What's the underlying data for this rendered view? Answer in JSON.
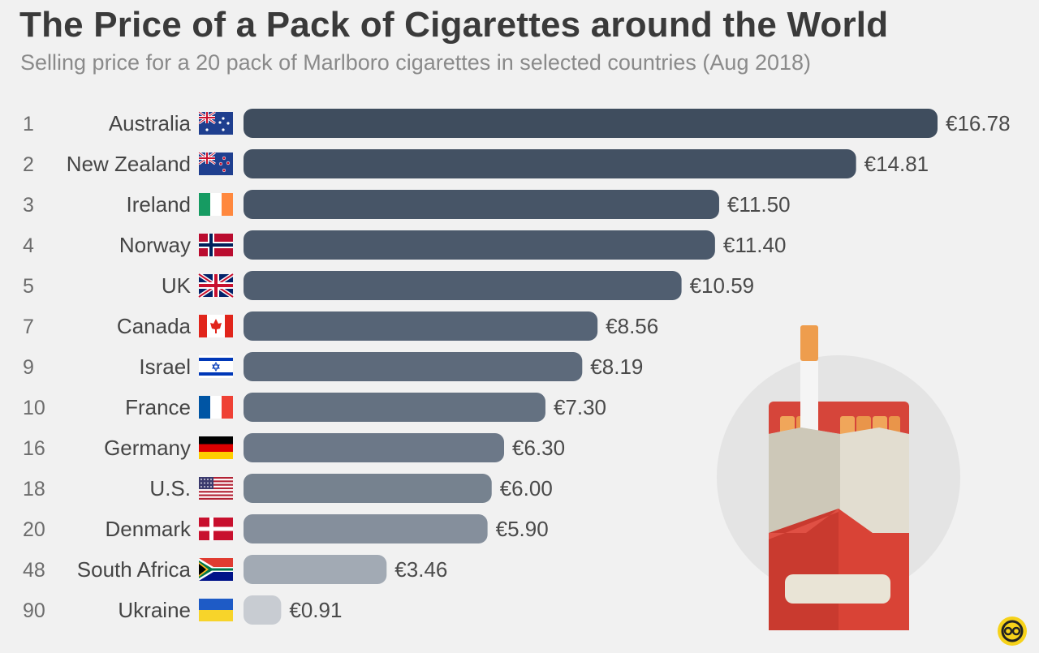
{
  "header": {
    "title": "The Price of a Pack of Cigarettes around the World",
    "subtitle": "Selling price for a 20 pack of Marlboro cigarettes in selected countries (Aug 2018)"
  },
  "chart_data": {
    "type": "bar",
    "orientation": "horizontal",
    "title": "The Price of a Pack of Cigarettes around the World",
    "subtitle": "Selling price for a 20 pack of Marlboro cigarettes in selected countries (Aug 2018)",
    "xlim": [
      0,
      16.78
    ],
    "grid": false,
    "legend": "none",
    "value_prefix": "€",
    "rows": [
      {
        "rank": "1",
        "country": "Australia",
        "value": 16.78,
        "label": "€16.78",
        "flag": "australia-flag-icon",
        "color": "#3f4d5e"
      },
      {
        "rank": "2",
        "country": "New Zealand",
        "value": 14.81,
        "label": "€14.81",
        "flag": "new-zealand-flag-icon",
        "color": "#435163"
      },
      {
        "rank": "3",
        "country": "Ireland",
        "value": 11.5,
        "label": "€11.50",
        "flag": "ireland-flag-icon",
        "color": "#475567"
      },
      {
        "rank": "4",
        "country": "Norway",
        "value": 11.4,
        "label": "€11.40",
        "flag": "norway-flag-icon",
        "color": "#4b596b"
      },
      {
        "rank": "5",
        "country": "UK",
        "value": 10.59,
        "label": "€10.59",
        "flag": "uk-flag-icon",
        "color": "#505e70"
      },
      {
        "rank": "7",
        "country": "Canada",
        "value": 8.56,
        "label": "€8.56",
        "flag": "canada-flag-icon",
        "color": "#566476"
      },
      {
        "rank": "9",
        "country": "Israel",
        "value": 8.19,
        "label": "€8.19",
        "flag": "israel-flag-icon",
        "color": "#5d6a7b"
      },
      {
        "rank": "10",
        "country": "France",
        "value": 7.3,
        "label": "€7.30",
        "flag": "france-flag-icon",
        "color": "#647181"
      },
      {
        "rank": "16",
        "country": "Germany",
        "value": 6.3,
        "label": "€6.30",
        "flag": "germany-flag-icon",
        "color": "#6c7888"
      },
      {
        "rank": "18",
        "country": "U.S.",
        "value": 6.0,
        "label": "€6.00",
        "flag": "us-flag-icon",
        "color": "#76828f"
      },
      {
        "rank": "20",
        "country": "Denmark",
        "value": 5.9,
        "label": "€5.90",
        "flag": "denmark-flag-icon",
        "color": "#858f9c"
      },
      {
        "rank": "48",
        "country": "South Africa",
        "value": 3.46,
        "label": "€3.46",
        "flag": "south-africa-flag-icon",
        "color": "#a2aab4"
      },
      {
        "rank": "90",
        "country": "Ukraine",
        "value": 0.91,
        "label": "€0.91",
        "flag": "ukraine-flag-icon",
        "color": "#c8ccd2"
      }
    ]
  },
  "decorations": {
    "illustration": "cigarette-pack-icon",
    "logo": "statista-logo-icon"
  }
}
